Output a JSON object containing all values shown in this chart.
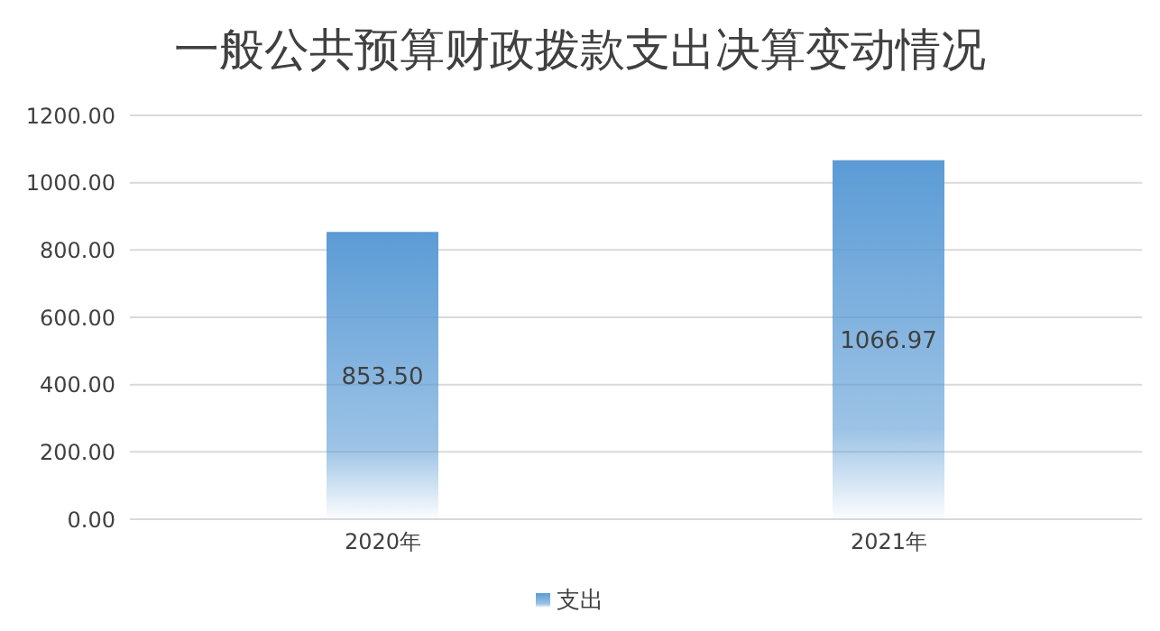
{
  "chart_data": {
    "type": "bar",
    "title": "一般公共预算财政拨款支出决算变动情况",
    "categories": [
      "2020年",
      "2021年"
    ],
    "series": [
      {
        "name": "支出",
        "color": "#5b9bd5",
        "values": [
          853.5,
          1066.97
        ],
        "value_labels": [
          "853.50",
          "1066.97"
        ]
      }
    ],
    "ylim": [
      0,
      1200
    ],
    "yticks": [
      {
        "value": 0,
        "label": "0.00"
      },
      {
        "value": 200,
        "label": "200.00"
      },
      {
        "value": 400,
        "label": "400.00"
      },
      {
        "value": 600,
        "label": "600.00"
      },
      {
        "value": 800,
        "label": "800.00"
      },
      {
        "value": 1000,
        "label": "1000.00"
      },
      {
        "value": 1200,
        "label": "1200.00"
      }
    ],
    "grid": "y",
    "legend": "bottom"
  }
}
